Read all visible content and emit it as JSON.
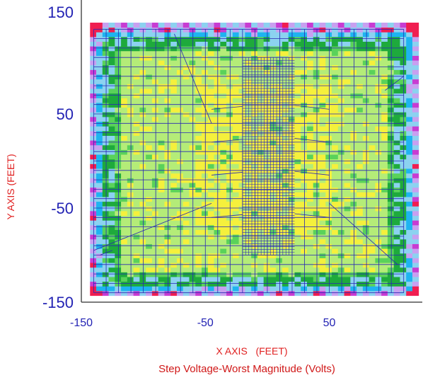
{
  "chart_data": {
    "type": "heatmap",
    "title": "Step Voltage-Worst Magnitude (Volts)",
    "xlabel": "X AXIS   (FEET)",
    "ylabel": "Y AXIS  (FEET)",
    "xlim": [
      -150,
      125
    ],
    "ylim": [
      -150,
      150
    ],
    "x_ticks": [
      "-150",
      "-50",
      "50"
    ],
    "y_ticks": [
      "150",
      "50",
      "-50",
      "-150"
    ],
    "grid": "grounding-grid conductors, 10 ft spacing (-140 to 110 in X, -140 to 140 in Y); dense mesh near X -20 to 20",
    "colors": {
      "yellow": "#f5f03c",
      "light_green": "#b4ec78",
      "mid_green": "#5ad25a",
      "dark_green": "#1eaa3c",
      "light_blue": "#8cd2f0",
      "blue": "#1eb4f0",
      "violet": "#c8a0f0",
      "magenta": "#c83cd2",
      "red": "#f01e50",
      "grid_line": "#2828b4"
    }
  }
}
